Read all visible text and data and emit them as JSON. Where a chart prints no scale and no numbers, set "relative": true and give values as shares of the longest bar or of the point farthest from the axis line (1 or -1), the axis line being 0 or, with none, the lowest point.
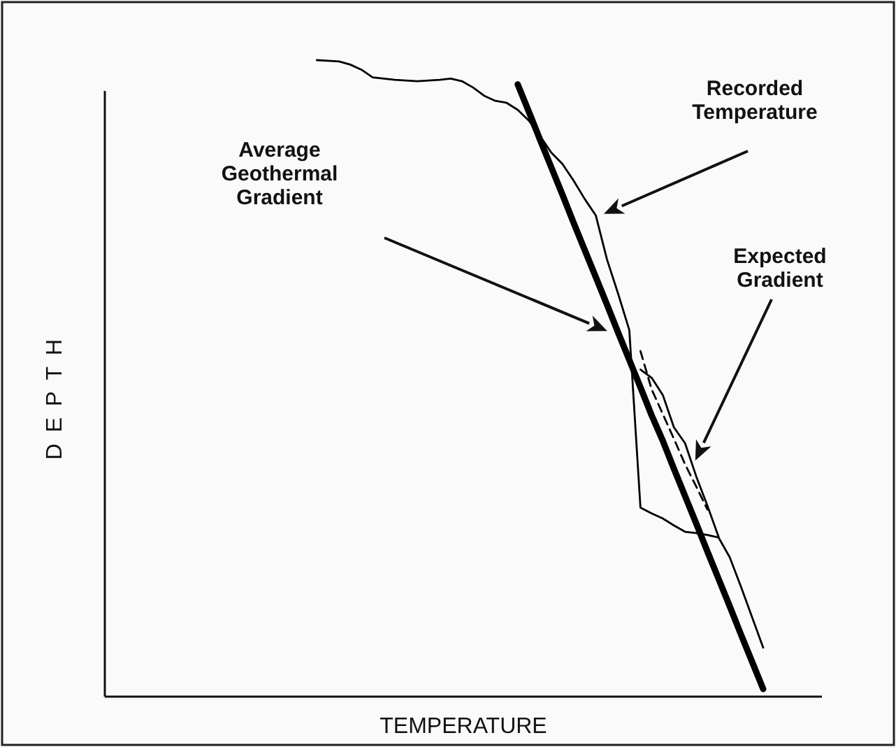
{
  "chart_data": {
    "type": "line",
    "relative": true,
    "xlabel": "TEMPERATURE",
    "ylabel": "DEPTH",
    "annotations": [
      "Recorded Temperature",
      "Average Geothermal Gradient",
      "Expected Gradient"
    ],
    "categories": [
      null,
      null,
      null,
      null,
      null,
      null,
      null,
      null,
      null,
      null,
      null,
      null,
      null,
      null,
      null,
      null,
      null,
      null,
      null,
      null,
      null,
      null,
      null,
      null,
      null,
      null,
      null,
      null,
      null,
      null,
      null,
      null,
      null,
      null,
      null,
      null,
      null,
      null,
      null,
      null,
      null,
      null,
      null,
      null,
      null,
      null,
      null,
      null,
      null,
      null,
      null,
      null,
      null,
      null,
      null,
      null,
      null,
      null,
      null,
      null
    ],
    "series": [
      {
        "color": "#000000",
        "line_style": "solid",
        "values": [
          null,
          null,
          null,
          null,
          null,
          null,
          null,
          null,
          null,
          null,
          null,
          null,
          null,
          null,
          null,
          null,
          null,
          null,
          null,
          1,
          0.999,
          0.998,
          0.993,
          0.985,
          0.973,
          0.971,
          0.969,
          0.968,
          0.967,
          0.968,
          0.969,
          0.971,
          0.967,
          0.957,
          0.944,
          0.936,
          0.933,
          0.922,
          0.905,
          0.881,
          0.855,
          0.837,
          0.811,
          0.782,
          0.756,
          0.687,
          0.633,
          0.576,
          0.297,
          0.288,
          0.28,
          0.269,
          0.259,
          0.257,
          0.254,
          0.25,
          0.219,
          0.173,
          0.125,
          0.077
        ]
      },
      {
        "color": "#000000",
        "line_style": "solid",
        "values": [
          null,
          null,
          null,
          null,
          null,
          null,
          null,
          null,
          null,
          null,
          null,
          null,
          null,
          null,
          null,
          null,
          null,
          null,
          null,
          null,
          null,
          null,
          null,
          null,
          null,
          null,
          null,
          null,
          null,
          null,
          null,
          null,
          null,
          null,
          null,
          null,
          null,
          null,
          null,
          null,
          null,
          null,
          null,
          null,
          null,
          null,
          null,
          null,
          0.514,
          0.501,
          0.474,
          0.423,
          0.398,
          0.346,
          0.3,
          0.251,
          null,
          null,
          null,
          null
        ]
      },
      {
        "color": "#000000",
        "line_style": "solid",
        "values": [
          null,
          null,
          null,
          null,
          null,
          null,
          null,
          null,
          null,
          null,
          null,
          null,
          null,
          null,
          null,
          null,
          null,
          null,
          null,
          null,
          null,
          null,
          null,
          null,
          null,
          null,
          null,
          null,
          null,
          null,
          null,
          null,
          null,
          null,
          null,
          null,
          null,
          0.962,
          0.919,
          0.875,
          0.832,
          0.789,
          0.745,
          0.702,
          0.659,
          0.616,
          0.572,
          0.529,
          0.486,
          0.442,
          0.402,
          0.358,
          0.315,
          0.272,
          0.228,
          0.185,
          0.142,
          0.098,
          0.055,
          0.012
        ]
      },
      {
        "color": "#000000",
        "line_style": "dashed",
        "values": [
          null,
          null,
          null,
          null,
          null,
          null,
          null,
          null,
          null,
          null,
          null,
          null,
          null,
          null,
          null,
          null,
          null,
          null,
          null,
          null,
          null,
          null,
          null,
          null,
          null,
          null,
          null,
          null,
          null,
          null,
          null,
          null,
          null,
          null,
          null,
          null,
          null,
          null,
          null,
          null,
          null,
          null,
          null,
          null,
          null,
          null,
          null,
          null,
          0.543,
          0.483,
          0.444,
          0.405,
          0.365,
          0.33,
          0.294,
          null,
          null,
          null,
          null,
          null
        ]
      }
    ]
  }
}
